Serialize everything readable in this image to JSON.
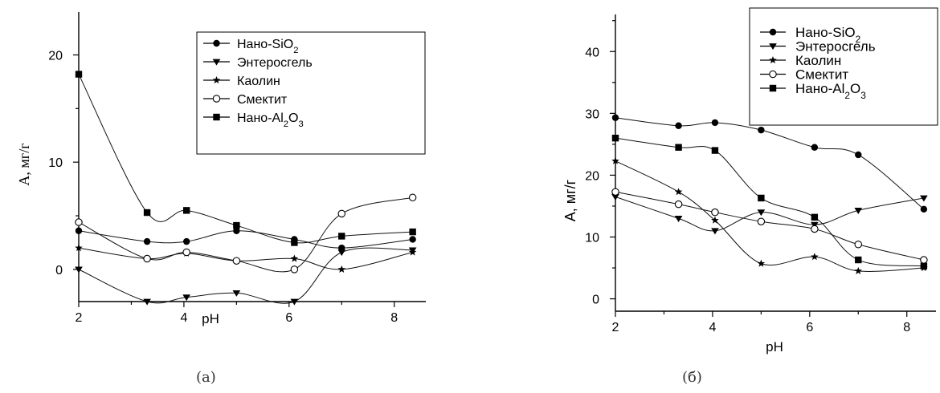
{
  "panels": [
    {
      "caption": "(a)",
      "xlabel": "pH",
      "ylabel": "А, мг/г",
      "xticks": [
        "2",
        "4",
        "6",
        "8"
      ],
      "yticks": [
        "0",
        "10",
        "20"
      ],
      "legend": {
        "entries": [
          "Нано-SiO2",
          "Энтеросгель",
          "Каолин",
          "Смектит",
          "Нано-Al2O3"
        ]
      }
    },
    {
      "caption": "(б)",
      "xlabel": "pH",
      "ylabel": "А, мг/г",
      "xticks": [
        "2",
        "4",
        "6",
        "8"
      ],
      "yticks": [
        "0",
        "10",
        "20",
        "30",
        "40"
      ],
      "legend": {
        "entries": [
          "Нано-SiO2",
          "Энтеросгель",
          "Каолин",
          "Смектит",
          "Нано-Al2O3"
        ]
      }
    }
  ],
  "chart_data": [
    {
      "type": "scatter",
      "title": "",
      "xlabel": "pH",
      "ylabel": "А, мг/г",
      "xlim": [
        2,
        8.6
      ],
      "ylim": [
        -3,
        24
      ],
      "legend_position": "top-right",
      "grid": false,
      "series": [
        {
          "name": "Нано-SiO2",
          "marker": "circle-filled",
          "x": [
            2,
            3.3,
            4.05,
            5.0,
            6.1,
            7.0,
            8.35
          ],
          "y": [
            3.6,
            2.6,
            2.6,
            3.6,
            2.8,
            2.0,
            2.8
          ]
        },
        {
          "name": "Энтеросгель",
          "marker": "triangle-down",
          "x": [
            2,
            3.3,
            4.05,
            5.0,
            6.1,
            7.0,
            8.35
          ],
          "y": [
            0,
            -3.0,
            -2.6,
            -2.2,
            -3.0,
            1.6,
            1.8
          ]
        },
        {
          "name": "Каолин",
          "marker": "star",
          "x": [
            2,
            3.3,
            4.05,
            5.0,
            6.1,
            7.0,
            8.35
          ],
          "y": [
            2.0,
            1.0,
            1.5,
            0.8,
            1.0,
            0,
            1.6
          ]
        },
        {
          "name": "Смектит",
          "marker": "circle-open",
          "x": [
            2,
            3.3,
            4.05,
            5.0,
            6.1,
            7.0,
            8.35
          ],
          "y": [
            4.4,
            1.0,
            1.6,
            0.8,
            0,
            5.2,
            6.7
          ]
        },
        {
          "name": "Нано-Al2O3",
          "marker": "square",
          "x": [
            2,
            3.3,
            4.05,
            5.0,
            6.1,
            7.0,
            8.35
          ],
          "y": [
            18.2,
            5.3,
            5.5,
            4.1,
            2.5,
            3.1,
            3.5
          ]
        }
      ]
    },
    {
      "type": "scatter",
      "title": "",
      "xlabel": "pH",
      "ylabel": "А, мг/г",
      "xlim": [
        2,
        8.6
      ],
      "ylim": [
        -2,
        46
      ],
      "legend_position": "top-right",
      "grid": false,
      "series": [
        {
          "name": "Нано-SiO2",
          "marker": "circle-filled",
          "x": [
            2,
            3.3,
            4.05,
            5.0,
            6.1,
            7.0,
            8.35
          ],
          "y": [
            29.3,
            28.0,
            28.5,
            27.3,
            24.5,
            23.3,
            14.5
          ]
        },
        {
          "name": "Энтеросгель",
          "marker": "triangle-down",
          "x": [
            2,
            3.3,
            4.05,
            5.0,
            6.1,
            7.0,
            8.35
          ],
          "y": [
            16.5,
            13.0,
            11.0,
            14.0,
            12.0,
            14.3,
            16.3
          ]
        },
        {
          "name": "Каолин",
          "marker": "star",
          "x": [
            2,
            3.3,
            4.05,
            5.0,
            6.1,
            7.0,
            8.35
          ],
          "y": [
            22.3,
            17.3,
            12.7,
            5.7,
            6.8,
            4.5,
            5.0
          ]
        },
        {
          "name": "Смектит",
          "marker": "circle-open",
          "x": [
            2,
            3.3,
            4.05,
            5.0,
            6.1,
            7.0,
            8.35
          ],
          "y": [
            17.3,
            15.3,
            14.0,
            12.5,
            11.3,
            8.8,
            6.3
          ]
        },
        {
          "name": "Нано-Al2O3",
          "marker": "square",
          "x": [
            2,
            3.3,
            4.05,
            5.0,
            6.1,
            7.0,
            8.35
          ],
          "y": [
            26.0,
            24.5,
            24.0,
            16.3,
            13.2,
            6.3,
            5.3
          ]
        }
      ]
    }
  ]
}
